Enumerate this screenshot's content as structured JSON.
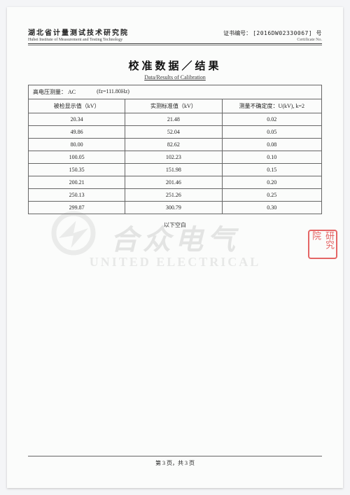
{
  "header": {
    "institution_cn": "湖北省计量测试技术研究院",
    "institution_en": "Hubei Institute of Measurement and Testing Technology",
    "cert_label_cn": "证书编号：",
    "cert_label_en": "Certificate No.",
    "cert_no": "[2016DW02330067] 号"
  },
  "title": {
    "cn": "校准数据／结果",
    "en": "Data/Results of Calibration"
  },
  "meta": {
    "measure_label": "高电压测量：",
    "measure_value": "AC",
    "freq": "(fz=111.80Hz)"
  },
  "table": {
    "columns": [
      "被检显示值（kV）",
      "实测标准值（kV）",
      "测量不确定度：U(kV), k=2"
    ],
    "rows": [
      [
        "20.34",
        "21.48",
        "0.02"
      ],
      [
        "49.86",
        "52.04",
        "0.05"
      ],
      [
        "80.00",
        "82.62",
        "0.08"
      ],
      [
        "100.05",
        "102.23",
        "0.10"
      ],
      [
        "150.35",
        "151.98",
        "0.15"
      ],
      [
        "200.21",
        "201.46",
        "0.20"
      ],
      [
        "250.13",
        "251.26",
        "0.25"
      ],
      [
        "299.87",
        "300.79",
        "0.30"
      ]
    ],
    "col_widths": [
      "33%",
      "33%",
      "34%"
    ],
    "border_color": "#666666",
    "font_size_pt": 8
  },
  "blank_note": "以下空白",
  "watermark": {
    "cn": "合众电气",
    "en": "UNITED ELECTRICAL"
  },
  "stamp": "研究院",
  "footer": {
    "text": "第 3 页，共 3 页"
  },
  "colors": {
    "page_bg": "#fbfcfb",
    "text": "#222222",
    "rule": "#666666",
    "stamp": "#dd3333",
    "watermark": "rgba(120,120,120,0.18)"
  }
}
